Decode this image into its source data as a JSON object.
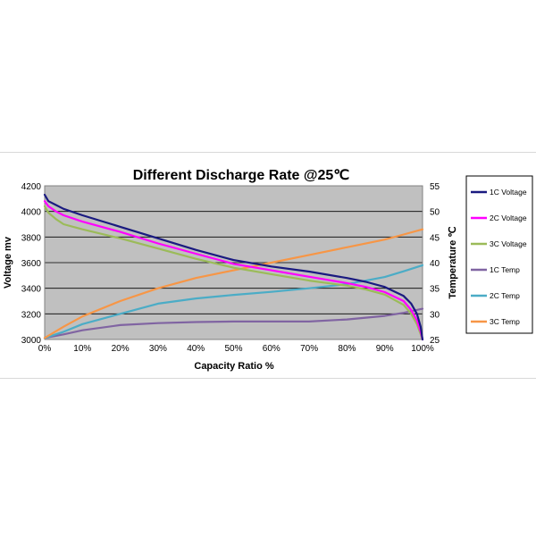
{
  "chart_data": {
    "type": "line",
    "title": "Different Discharge Rate @25℃",
    "xlabel": "Capacity Ratio  %",
    "ylabel": "Voltage  mv",
    "y2label": "Temperature  ℃",
    "xlim": [
      0,
      100
    ],
    "ylim": [
      3000,
      4200
    ],
    "y2lim": [
      25,
      55
    ],
    "x_ticks": [
      "0%",
      "10%",
      "20%",
      "30%",
      "40%",
      "50%",
      "60%",
      "70%",
      "80%",
      "90%",
      "100%"
    ],
    "y_ticks": [
      "3000",
      "3200",
      "3400",
      "3600",
      "3800",
      "4000",
      "4200"
    ],
    "y2_ticks": [
      "25",
      "30",
      "35",
      "40",
      "45",
      "50",
      "55"
    ],
    "grid": "horizontal",
    "legend_position": "right",
    "series": [
      {
        "name": "1C Voltage",
        "axis": "left",
        "color": "#1a1a80",
        "x": [
          0,
          1,
          3,
          5,
          10,
          20,
          30,
          40,
          50,
          60,
          70,
          80,
          85,
          90,
          95,
          97,
          98.5,
          99.5,
          100
        ],
        "y": [
          4130,
          4080,
          4050,
          4020,
          3970,
          3880,
          3790,
          3700,
          3620,
          3570,
          3530,
          3480,
          3450,
          3410,
          3340,
          3280,
          3200,
          3100,
          3000
        ]
      },
      {
        "name": "2C Voltage",
        "axis": "left",
        "color": "#ff00ff",
        "x": [
          0,
          1,
          3,
          5,
          10,
          20,
          30,
          40,
          50,
          60,
          70,
          80,
          85,
          90,
          95,
          97,
          98.5,
          99.5,
          100
        ],
        "y": [
          4080,
          4040,
          4000,
          3970,
          3920,
          3840,
          3750,
          3670,
          3590,
          3540,
          3490,
          3440,
          3410,
          3370,
          3300,
          3230,
          3150,
          3060,
          3000
        ]
      },
      {
        "name": "3C Voltage",
        "axis": "left",
        "color": "#9bbb59",
        "x": [
          0,
          1,
          3,
          5,
          10,
          20,
          30,
          40,
          50,
          60,
          70,
          80,
          85,
          90,
          95,
          97,
          98.5,
          99.5,
          100
        ],
        "y": [
          4040,
          3990,
          3940,
          3900,
          3860,
          3790,
          3710,
          3630,
          3560,
          3510,
          3460,
          3420,
          3390,
          3350,
          3270,
          3200,
          3120,
          3040,
          3000
        ]
      },
      {
        "name": "1C Temp",
        "axis": "right",
        "color": "#8064a2",
        "x": [
          0,
          5,
          10,
          20,
          30,
          40,
          50,
          60,
          70,
          80,
          90,
          95,
          100
        ],
        "y": [
          25.3,
          26,
          26.8,
          27.8,
          28.2,
          28.4,
          28.5,
          28.5,
          28.5,
          28.9,
          29.6,
          30.2,
          31
        ]
      },
      {
        "name": "2C Temp",
        "axis": "right",
        "color": "#4bacc6",
        "x": [
          0,
          5,
          10,
          20,
          30,
          40,
          50,
          60,
          70,
          80,
          90,
          95,
          100
        ],
        "y": [
          25.3,
          26.5,
          28,
          30,
          32,
          33,
          33.7,
          34.3,
          35,
          35.8,
          37.2,
          38.3,
          39.5
        ]
      },
      {
        "name": "3C Temp",
        "axis": "right",
        "color": "#f79646",
        "x": [
          0,
          5,
          10,
          20,
          30,
          40,
          50,
          60,
          70,
          80,
          90,
          95,
          100
        ],
        "y": [
          25.3,
          27.5,
          29.5,
          32.5,
          35,
          37,
          38.5,
          40,
          41.5,
          43,
          44.5,
          45.5,
          46.5
        ]
      }
    ]
  }
}
